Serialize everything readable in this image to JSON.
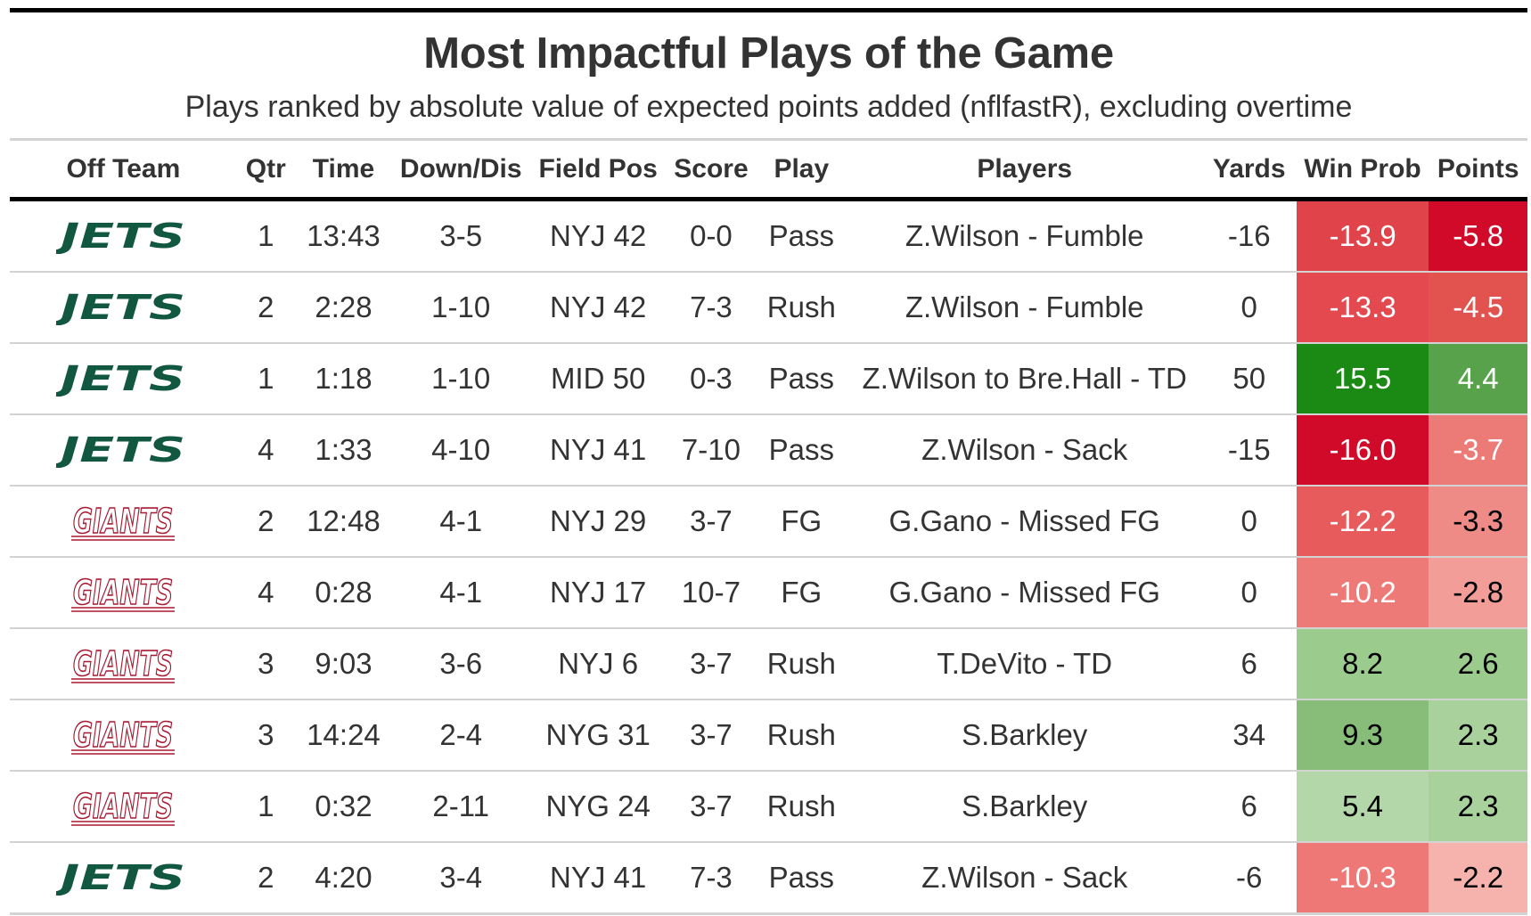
{
  "title": "Most Impactful Plays of the Game",
  "subtitle": "Plays ranked by absolute value of expected points added (nflfastR), excluding overtime",
  "columns": [
    "Off Team",
    "Qtr",
    "Time",
    "Down/Dis",
    "Field Pos",
    "Score",
    "Play",
    "Players",
    "Yards",
    "Win Prob",
    "Points"
  ],
  "colors": {
    "jets_green": "#125740",
    "giants_red": "#a71930",
    "header_rule": "#000000",
    "row_rule": "#d3d3d3",
    "text": "#333333"
  },
  "rows": [
    {
      "team": "jets",
      "team_logo_text": "JETS",
      "qtr": "1",
      "time": "13:43",
      "down_dis": "3-5",
      "field_pos": "NYJ 42",
      "score": "0-0",
      "play": "Pass",
      "players": "Z.Wilson - Fumble",
      "yards": "-16",
      "win_prob": "-13.9",
      "points": "-5.8",
      "win_prob_bg": "#e0434a",
      "win_prob_fg": "#ffffff",
      "points_bg": "#d10a2a",
      "points_fg": "#ffffff"
    },
    {
      "team": "jets",
      "team_logo_text": "JETS",
      "qtr": "2",
      "time": "2:28",
      "down_dis": "1-10",
      "field_pos": "NYJ 42",
      "score": "7-3",
      "play": "Rush",
      "players": "Z.Wilson - Fumble",
      "yards": "0",
      "win_prob": "-13.3",
      "points": "-4.5",
      "win_prob_bg": "#e3494e",
      "win_prob_fg": "#ffffff",
      "points_bg": "#e2524f",
      "points_fg": "#ffffff"
    },
    {
      "team": "jets",
      "team_logo_text": "JETS",
      "qtr": "1",
      "time": "1:18",
      "down_dis": "1-10",
      "field_pos": "MID 50",
      "score": "0-3",
      "play": "Pass",
      "players": "Z.Wilson to Bre.Hall - TD",
      "yards": "50",
      "win_prob": "15.5",
      "points": "4.4",
      "win_prob_bg": "#1a8a14",
      "win_prob_fg": "#ffffff",
      "points_bg": "#58a24c",
      "points_fg": "#ffffff"
    },
    {
      "team": "jets",
      "team_logo_text": "JETS",
      "qtr": "4",
      "time": "1:33",
      "down_dis": "4-10",
      "field_pos": "NYJ 41",
      "score": "7-10",
      "play": "Pass",
      "players": "Z.Wilson - Sack",
      "yards": "-15",
      "win_prob": "-16.0",
      "points": "-3.7",
      "win_prob_bg": "#d10a2a",
      "win_prob_fg": "#ffffff",
      "points_bg": "#ec7a76",
      "points_fg": "#ffffff"
    },
    {
      "team": "giants",
      "team_logo_text": "GIANTS",
      "qtr": "2",
      "time": "12:48",
      "down_dis": "4-1",
      "field_pos": "NYJ 29",
      "score": "3-7",
      "play": "FG",
      "players": "G.Gano - Missed FG",
      "yards": "0",
      "win_prob": "-12.2",
      "points": "-3.3",
      "win_prob_bg": "#e75b5c",
      "win_prob_fg": "#ffffff",
      "points_bg": "#ef8b86",
      "points_fg": "#000000"
    },
    {
      "team": "giants",
      "team_logo_text": "GIANTS",
      "qtr": "4",
      "time": "0:28",
      "down_dis": "4-1",
      "field_pos": "NYJ 17",
      "score": "10-7",
      "play": "FG",
      "players": "G.Gano - Missed FG",
      "yards": "0",
      "win_prob": "-10.2",
      "points": "-2.8",
      "win_prob_bg": "#ee7a77",
      "win_prob_fg": "#ffffff",
      "points_bg": "#f29d98",
      "points_fg": "#000000"
    },
    {
      "team": "giants",
      "team_logo_text": "GIANTS",
      "qtr": "3",
      "time": "9:03",
      "down_dis": "3-6",
      "field_pos": "NYJ 6",
      "score": "3-7",
      "play": "Rush",
      "players": "T.DeVito - TD",
      "yards": "6",
      "win_prob": "8.2",
      "points": "2.6",
      "win_prob_bg": "#9ccb8e",
      "win_prob_fg": "#000000",
      "points_bg": "#9ccb8e",
      "points_fg": "#000000"
    },
    {
      "team": "giants",
      "team_logo_text": "GIANTS",
      "qtr": "3",
      "time": "14:24",
      "down_dis": "2-4",
      "field_pos": "NYG 31",
      "score": "3-7",
      "play": "Rush",
      "players": "S.Barkley",
      "yards": "34",
      "win_prob": "9.3",
      "points": "2.3",
      "win_prob_bg": "#87bd78",
      "win_prob_fg": "#000000",
      "points_bg": "#a8d19b",
      "points_fg": "#000000"
    },
    {
      "team": "giants",
      "team_logo_text": "GIANTS",
      "qtr": "1",
      "time": "0:32",
      "down_dis": "2-11",
      "field_pos": "NYG 24",
      "score": "3-7",
      "play": "Rush",
      "players": "S.Barkley",
      "yards": "6",
      "win_prob": "5.4",
      "points": "2.3",
      "win_prob_bg": "#b3d7a8",
      "win_prob_fg": "#000000",
      "points_bg": "#a8d19b",
      "points_fg": "#000000"
    },
    {
      "team": "jets",
      "team_logo_text": "JETS",
      "qtr": "2",
      "time": "4:20",
      "down_dis": "3-4",
      "field_pos": "NYJ 41",
      "score": "7-3",
      "play": "Pass",
      "players": "Z.Wilson - Sack",
      "yards": "-6",
      "win_prob": "-10.3",
      "points": "-2.2",
      "win_prob_bg": "#ee7876",
      "win_prob_fg": "#ffffff",
      "points_bg": "#f6b3ae",
      "points_fg": "#000000"
    }
  ]
}
